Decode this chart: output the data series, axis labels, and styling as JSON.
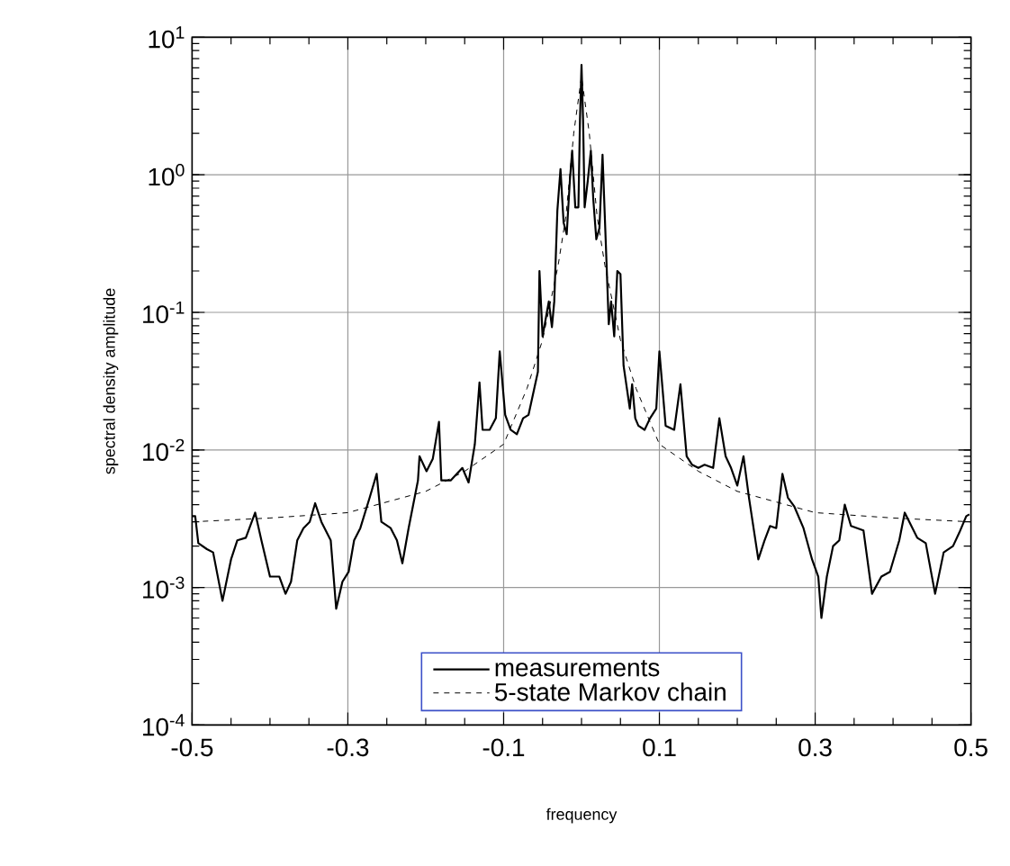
{
  "chart_data": {
    "type": "line",
    "xlabel": "frequency",
    "ylabel": "spectral density amplitude",
    "log": "y",
    "grid": true,
    "legend": "bottom",
    "xlim": [
      -0.5,
      0.5
    ],
    "xticks": [
      -0.5,
      -0.3,
      -0.1,
      0.1,
      0.3,
      0.5
    ],
    "ylim": [
      0.0001,
      10
    ],
    "yticks": [
      {
        "value": 0.0001,
        "label": "10$^{-4}$"
      },
      {
        "value": 0.001,
        "label": "10$^{-3}$"
      },
      {
        "value": 0.01,
        "label": "10$^{-2}$"
      },
      {
        "value": 0.1,
        "label": "10$^{-1}$"
      },
      {
        "value": 1,
        "label": "10$^{0}$"
      },
      {
        "value": 10,
        "label": "10$^{1}$"
      }
    ],
    "series": [
      {
        "name": "measurements",
        "color": "#000000",
        "line_style": "solid",
        "x": [
          -0.5,
          -0.496,
          -0.492,
          -0.481,
          -0.473,
          -0.461,
          -0.45,
          -0.442,
          -0.431,
          -0.419,
          -0.411,
          -0.4,
          -0.388,
          -0.38,
          -0.373,
          -0.365,
          -0.357,
          -0.349,
          -0.342,
          -0.334,
          -0.322,
          -0.315,
          -0.307,
          -0.299,
          -0.292,
          -0.284,
          -0.272,
          -0.263,
          -0.257,
          -0.245,
          -0.237,
          -0.23,
          -0.222,
          -0.21,
          -0.208,
          -0.199,
          -0.191,
          -0.183,
          -0.18,
          -0.168,
          -0.153,
          -0.145,
          -0.137,
          -0.131,
          -0.127,
          -0.118,
          -0.11,
          -0.105,
          -0.098,
          -0.091,
          -0.083,
          -0.075,
          -0.068,
          -0.056,
          -0.054,
          -0.05,
          -0.042,
          -0.038,
          -0.035,
          -0.031,
          -0.027,
          -0.023,
          -0.019,
          -0.015,
          -0.012,
          -0.008,
          -0.004,
          -0.002,
          0.0,
          0.002,
          0.004,
          0.008,
          0.012,
          0.015,
          0.019,
          0.023,
          0.027,
          0.031,
          0.035,
          0.038,
          0.042,
          0.046,
          0.05,
          0.054,
          0.062,
          0.065,
          0.069,
          0.073,
          0.081,
          0.088,
          0.096,
          0.1,
          0.108,
          0.119,
          0.127,
          0.135,
          0.142,
          0.15,
          0.158,
          0.169,
          0.177,
          0.185,
          0.192,
          0.2,
          0.208,
          0.215,
          0.227,
          0.235,
          0.242,
          0.25,
          0.258,
          0.265,
          0.273,
          0.285,
          0.296,
          0.304,
          0.308,
          0.315,
          0.323,
          0.331,
          0.338,
          0.346,
          0.362,
          0.373,
          0.385,
          0.396,
          0.408,
          0.415,
          0.431,
          0.442,
          0.454,
          0.465,
          0.477,
          0.485,
          0.494,
          0.498
        ],
        "values": [
          0.0033,
          0.0033,
          0.0021,
          0.0019,
          0.0018,
          0.0008,
          0.0016,
          0.0022,
          0.0023,
          0.0035,
          0.0022,
          0.0012,
          0.0012,
          0.0009,
          0.0011,
          0.0022,
          0.0027,
          0.003,
          0.0041,
          0.003,
          0.0022,
          0.0007,
          0.0011,
          0.0013,
          0.0022,
          0.0027,
          0.0045,
          0.0067,
          0.003,
          0.0027,
          0.0022,
          0.0015,
          0.0027,
          0.006,
          0.009,
          0.007,
          0.0086,
          0.016,
          0.006,
          0.006,
          0.0074,
          0.0058,
          0.011,
          0.031,
          0.014,
          0.014,
          0.017,
          0.052,
          0.018,
          0.014,
          0.013,
          0.017,
          0.018,
          0.037,
          0.2,
          0.067,
          0.12,
          0.078,
          0.12,
          0.55,
          1.1,
          0.45,
          0.37,
          0.9,
          1.5,
          0.58,
          0.58,
          2.5,
          6.3,
          2.5,
          0.58,
          0.9,
          1.5,
          0.68,
          0.34,
          0.41,
          1.4,
          0.34,
          0.082,
          0.12,
          0.067,
          0.2,
          0.19,
          0.041,
          0.02,
          0.03,
          0.017,
          0.015,
          0.014,
          0.017,
          0.02,
          0.052,
          0.015,
          0.014,
          0.03,
          0.009,
          0.0078,
          0.0074,
          0.0078,
          0.0074,
          0.017,
          0.009,
          0.0074,
          0.0055,
          0.009,
          0.0045,
          0.0016,
          0.0022,
          0.0028,
          0.0027,
          0.0067,
          0.0045,
          0.0039,
          0.0027,
          0.0016,
          0.0012,
          0.0006,
          0.0012,
          0.002,
          0.0022,
          0.004,
          0.0028,
          0.0026,
          0.0009,
          0.0012,
          0.0013,
          0.0022,
          0.0035,
          0.0023,
          0.0021,
          0.0009,
          0.0018,
          0.002,
          0.0025,
          0.0033,
          0.0034
        ]
      },
      {
        "name": "5-state  Markov  chain",
        "color": "#000000",
        "line_style": "dashed",
        "x": [
          -0.5,
          -0.4,
          -0.3,
          -0.2,
          -0.15,
          -0.1,
          -0.07,
          -0.05,
          -0.03,
          -0.02,
          -0.01,
          0.0,
          0.01,
          0.02,
          0.03,
          0.05,
          0.07,
          0.1,
          0.15,
          0.2,
          0.3,
          0.4,
          0.5
        ],
        "values": [
          0.003,
          0.0032,
          0.0035,
          0.005,
          0.007,
          0.011,
          0.028,
          0.063,
          0.22,
          0.5,
          2.0,
          5.2,
          2.0,
          0.5,
          0.22,
          0.063,
          0.028,
          0.011,
          0.007,
          0.005,
          0.0035,
          0.0032,
          0.003
        ]
      }
    ]
  }
}
